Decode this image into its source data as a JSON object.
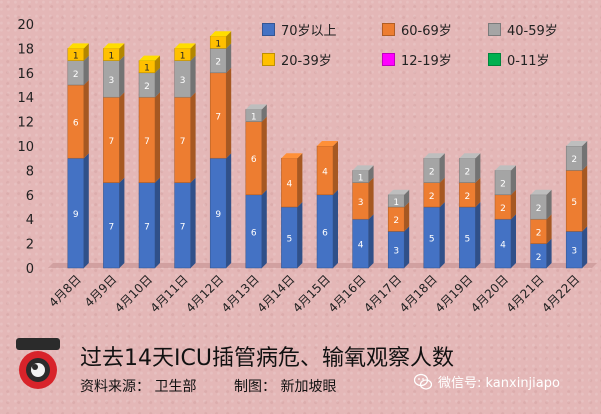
{
  "chart_data": {
    "type": "bar",
    "stacked": true,
    "categories": [
      "4月8日",
      "4月9日",
      "4月10日",
      "4月11日",
      "4月12日",
      "4月13日",
      "4月14日",
      "4月15日",
      "4月16日",
      "4月17日",
      "4月18日",
      "4月19日",
      "4月20日",
      "4月21日",
      "4月22日"
    ],
    "series": [
      {
        "name": "70岁以上",
        "color": "#4472c4",
        "values": [
          9,
          7,
          7,
          7,
          9,
          6,
          5,
          6,
          4,
          3,
          5,
          5,
          4,
          2,
          3
        ]
      },
      {
        "name": "60-69岁",
        "color": "#ed7d31",
        "values": [
          6,
          7,
          7,
          7,
          7,
          6,
          4,
          4,
          3,
          2,
          2,
          2,
          2,
          2,
          5
        ]
      },
      {
        "name": "40-59岁",
        "color": "#a5a5a5",
        "values": [
          2,
          3,
          2,
          3,
          2,
          1,
          0,
          0,
          1,
          1,
          2,
          2,
          2,
          2,
          2
        ]
      },
      {
        "name": "20-39岁",
        "color": "#ffc000",
        "values": [
          1,
          1,
          1,
          1,
          1,
          0,
          0,
          0,
          0,
          0,
          0,
          0,
          0,
          0,
          0
        ]
      },
      {
        "name": "12-19岁",
        "color": "#ff00ff",
        "values": [
          0,
          0,
          0,
          0,
          0,
          0,
          0,
          0,
          0,
          0,
          0,
          0,
          0,
          0,
          0
        ]
      },
      {
        "name": "0-11岁",
        "color": "#00b050",
        "values": [
          0,
          0,
          0,
          0,
          0,
          0,
          0,
          0,
          0,
          0,
          0,
          0,
          0,
          0,
          0
        ]
      }
    ],
    "ylim": [
      0,
      20
    ],
    "yticks": [
      0,
      2,
      4,
      6,
      8,
      10,
      12,
      14,
      16,
      18,
      20
    ],
    "grid": false,
    "legend_position": "top-right"
  },
  "footer": {
    "title": "过去14天ICU插管病危、输氧观察人数",
    "source": "资料来源：  卫生部",
    "credit": "制图：  新加坡眼"
  },
  "watermark": {
    "text": "微信号: kanxinjiapo"
  },
  "logo": {
    "text": "新加坡眼"
  }
}
